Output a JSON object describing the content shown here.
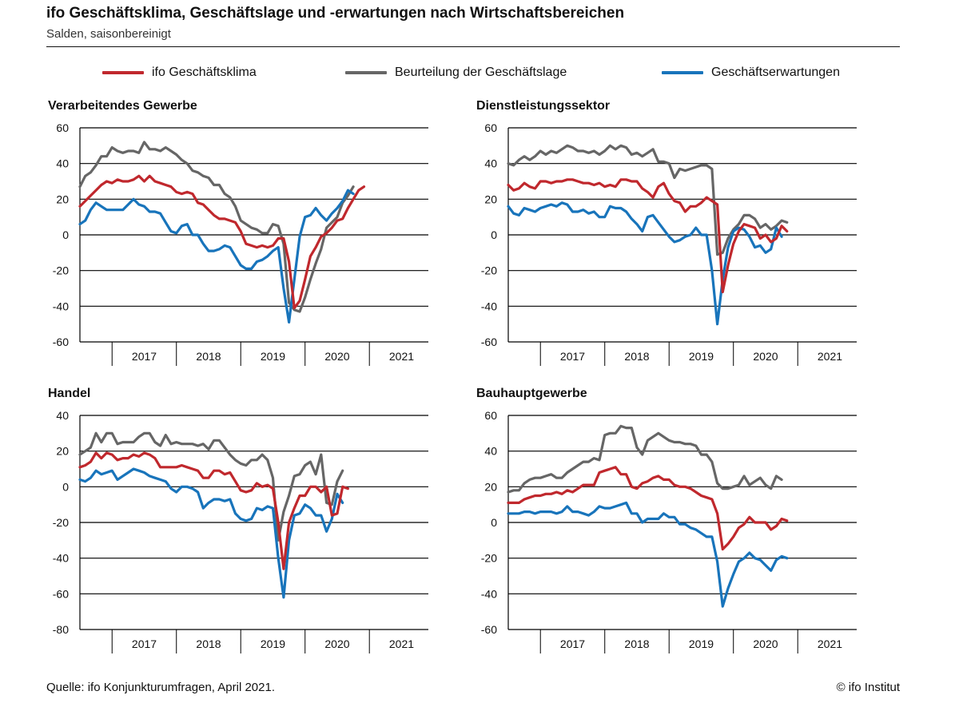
{
  "header": {
    "title": "ifo Geschäftsklima, Geschäftslage und -erwartungen nach Wirtschaftsbereichen",
    "subtitle": "Salden, saisonbereinigt"
  },
  "legend": [
    {
      "label": "ifo Geschäftsklima",
      "color": "#c0282d"
    },
    {
      "label": "Beurteilung der Geschäftslage",
      "color": "#666666"
    },
    {
      "label": "Geschäftserwartungen",
      "color": "#1874bb"
    }
  ],
  "footer": {
    "source": "Quelle: ifo Konjunkturumfragen, April 2021.",
    "copyright": "© ifo Institut"
  },
  "chart_data": [
    {
      "type": "line",
      "title": "Verarbeitendes Gewerbe",
      "x_start": "2016-07",
      "x_end": "2021-12",
      "x_ticks": [
        "2017",
        "2018",
        "2019",
        "2020",
        "2021"
      ],
      "ylim": [
        -60,
        60
      ],
      "y_ticks": [
        -60,
        -40,
        -20,
        0,
        20,
        40,
        60
      ],
      "grid": true,
      "series": [
        {
          "name": "ifo Geschäftsklima",
          "color": "#c0282d",
          "values": [
            16,
            19,
            22,
            25,
            28,
            30,
            29,
            31,
            30,
            30,
            31,
            33,
            30,
            33,
            30,
            29,
            28,
            27,
            24,
            23,
            24,
            23,
            18,
            17,
            14,
            11,
            9,
            9,
            8,
            7,
            2,
            -5,
            -6,
            -7,
            -6,
            -7,
            -6,
            -2,
            -2,
            -15,
            -41,
            -37,
            -25,
            -12,
            -7,
            -1,
            1,
            4,
            8,
            9,
            15,
            20,
            25,
            27
          ]
        },
        {
          "name": "Beurteilung der Geschäftslage",
          "color": "#666666",
          "values": [
            27,
            33,
            35,
            39,
            44,
            44,
            49,
            47,
            46,
            47,
            47,
            46,
            52,
            48,
            48,
            47,
            49,
            47,
            45,
            42,
            40,
            36,
            35,
            33,
            32,
            28,
            28,
            23,
            21,
            16,
            8,
            6,
            4,
            3,
            1,
            1,
            6,
            5,
            -5,
            -38,
            -42,
            -43,
            -35,
            -25,
            -16,
            -8,
            4,
            7,
            10,
            18,
            22,
            27
          ]
        },
        {
          "name": "Geschäftserwartungen",
          "color": "#1874bb",
          "values": [
            6,
            8,
            14,
            18,
            16,
            14,
            14,
            14,
            14,
            17,
            20,
            17,
            16,
            13,
            13,
            12,
            7,
            2,
            1,
            5,
            6,
            0,
            0,
            -5,
            -9,
            -9,
            -8,
            -6,
            -7,
            -12,
            -17,
            -19,
            -19,
            -15,
            -14,
            -12,
            -9,
            -7,
            -30,
            -49,
            -25,
            -1,
            10,
            11,
            15,
            11,
            8,
            12,
            15,
            19,
            25,
            23
          ]
        }
      ]
    },
    {
      "type": "line",
      "title": "Dienstleistungssektor",
      "x_start": "2016-07",
      "x_end": "2021-12",
      "x_ticks": [
        "2017",
        "2018",
        "2019",
        "2020",
        "2021"
      ],
      "ylim": [
        -60,
        60
      ],
      "y_ticks": [
        -60,
        -40,
        -20,
        0,
        20,
        40,
        60
      ],
      "grid": true,
      "series": [
        {
          "name": "ifo Geschäftsklima",
          "color": "#c0282d",
          "values": [
            28,
            25,
            26,
            29,
            27,
            26,
            30,
            30,
            29,
            30,
            30,
            31,
            31,
            30,
            29,
            29,
            28,
            29,
            27,
            28,
            27,
            31,
            31,
            30,
            30,
            26,
            24,
            21,
            27,
            29,
            23,
            19,
            18,
            13,
            16,
            16,
            18,
            21,
            19,
            17,
            -32,
            -17,
            -5,
            2,
            6,
            5,
            4,
            -2,
            0,
            -4,
            -2,
            5,
            2
          ]
        },
        {
          "name": "Beurteilung der Geschäftslage",
          "color": "#666666",
          "values": [
            40,
            39,
            42,
            44,
            42,
            44,
            47,
            45,
            47,
            46,
            48,
            50,
            49,
            47,
            47,
            46,
            47,
            45,
            47,
            50,
            48,
            50,
            49,
            45,
            46,
            44,
            46,
            48,
            41,
            41,
            40,
            32,
            37,
            36,
            37,
            38,
            39,
            39,
            37,
            -11,
            -10,
            -2,
            3,
            6,
            11,
            11,
            9,
            4,
            6,
            3,
            5,
            8,
            7
          ]
        },
        {
          "name": "Geschäftserwartungen",
          "color": "#1874bb",
          "values": [
            16,
            12,
            11,
            15,
            14,
            13,
            15,
            16,
            17,
            16,
            18,
            17,
            13,
            13,
            14,
            12,
            13,
            10,
            10,
            16,
            15,
            15,
            13,
            9,
            6,
            2,
            10,
            11,
            7,
            3,
            -1,
            -4,
            -3,
            -1,
            0,
            4,
            0,
            0,
            -20,
            -50,
            -25,
            -7,
            2,
            4,
            3,
            -1,
            -7,
            -6,
            -10,
            -8,
            4,
            -1
          ]
        }
      ]
    },
    {
      "type": "line",
      "title": "Handel",
      "x_start": "2016-07",
      "x_end": "2021-12",
      "x_ticks": [
        "2017",
        "2018",
        "2019",
        "2020",
        "2021"
      ],
      "ylim": [
        -80,
        40
      ],
      "y_ticks": [
        -80,
        -60,
        -40,
        -20,
        0,
        20,
        40
      ],
      "grid": true,
      "series": [
        {
          "name": "ifo Geschäftsklima",
          "color": "#c0282d",
          "values": [
            11,
            12,
            14,
            19,
            16,
            19,
            18,
            15,
            16,
            16,
            18,
            17,
            19,
            18,
            16,
            11,
            11,
            11,
            11,
            12,
            11,
            10,
            9,
            5,
            5,
            9,
            9,
            7,
            8,
            3,
            -2,
            -3,
            -2,
            2,
            0,
            1,
            -1,
            -20,
            -46,
            -20,
            -12,
            -5,
            -5,
            0,
            0,
            -3,
            0,
            -16,
            -15,
            0,
            -1
          ]
        },
        {
          "name": "Beurteilung der Geschäftslage",
          "color": "#666666",
          "values": [
            18,
            20,
            22,
            30,
            25,
            30,
            30,
            24,
            25,
            25,
            25,
            28,
            30,
            30,
            25,
            23,
            29,
            24,
            25,
            24,
            24,
            24,
            23,
            24,
            21,
            26,
            26,
            22,
            18,
            15,
            13,
            12,
            15,
            15,
            18,
            15,
            5,
            -30,
            -14,
            -5,
            6,
            7,
            12,
            14,
            7,
            18,
            -9,
            -10,
            3,
            9
          ]
        },
        {
          "name": "Geschäftserwartungen",
          "color": "#1874bb",
          "values": [
            4,
            3,
            5,
            9,
            7,
            8,
            9,
            4,
            6,
            8,
            10,
            9,
            8,
            6,
            5,
            4,
            3,
            -1,
            -3,
            0,
            0,
            -1,
            -3,
            -12,
            -9,
            -7,
            -7,
            -8,
            -7,
            -15,
            -18,
            -19,
            -18,
            -12,
            -13,
            -11,
            -12,
            -40,
            -62,
            -30,
            -16,
            -15,
            -10,
            -12,
            -16,
            -16,
            -25,
            -18,
            -4,
            -9
          ]
        }
      ]
    },
    {
      "type": "line",
      "title": "Bauhauptgewerbe",
      "x_start": "2016-07",
      "x_end": "2021-12",
      "x_ticks": [
        "2017",
        "2018",
        "2019",
        "2020",
        "2021"
      ],
      "ylim": [
        -60,
        60
      ],
      "y_ticks": [
        -60,
        -40,
        -20,
        0,
        20,
        40,
        60
      ],
      "grid": true,
      "series": [
        {
          "name": "ifo Geschäftsklima",
          "color": "#c0282d",
          "values": [
            11,
            11,
            11,
            13,
            14,
            15,
            15,
            16,
            16,
            17,
            16,
            18,
            17,
            19,
            21,
            21,
            21,
            28,
            29,
            30,
            31,
            27,
            27,
            20,
            19,
            22,
            23,
            25,
            26,
            24,
            24,
            21,
            20,
            20,
            19,
            17,
            15,
            14,
            13,
            5,
            -15,
            -12,
            -8,
            -3,
            -1,
            3,
            0,
            0,
            0,
            -4,
            -2,
            2,
            1
          ]
        },
        {
          "name": "Beurteilung der Geschäftslage",
          "color": "#666666",
          "values": [
            17,
            18,
            18,
            22,
            24,
            25,
            25,
            26,
            27,
            25,
            25,
            28,
            30,
            32,
            34,
            34,
            36,
            35,
            49,
            50,
            50,
            54,
            53,
            53,
            42,
            38,
            46,
            48,
            50,
            48,
            46,
            45,
            45,
            44,
            44,
            43,
            38,
            38,
            34,
            22,
            19,
            19,
            20,
            21,
            26,
            21,
            23,
            25,
            21,
            19,
            26,
            24
          ]
        },
        {
          "name": "Geschäftserwartungen",
          "color": "#1874bb",
          "values": [
            5,
            5,
            5,
            6,
            6,
            5,
            6,
            6,
            6,
            5,
            6,
            9,
            6,
            6,
            5,
            4,
            6,
            9,
            8,
            8,
            9,
            10,
            11,
            5,
            5,
            0,
            2,
            2,
            2,
            5,
            3,
            3,
            -1,
            -1,
            -3,
            -4,
            -6,
            -8,
            -8,
            -22,
            -47,
            -37,
            -29,
            -22,
            -20,
            -17,
            -20,
            -21,
            -24,
            -27,
            -21,
            -19,
            -20
          ]
        }
      ]
    }
  ]
}
